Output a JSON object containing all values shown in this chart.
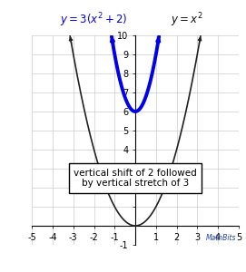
{
  "xlim": [
    -5,
    5
  ],
  "ylim": [
    -1,
    10
  ],
  "grid_color": "#cccccc",
  "black_curve_color": "#222222",
  "blue_curve_color": "#0000ee",
  "blue_curve_lw": 2.8,
  "black_curve_lw": 1.2,
  "annotation_text": "vertical shift of 2 followed\nby vertical stretch of 3",
  "mathbits_text": "MathBits",
  "box_color": "#ffffff",
  "box_edge_color": "#000000",
  "title_color_blue": "#0000ee",
  "title_color_black": "#111111",
  "figsize": [
    2.71,
    3.0
  ],
  "dpi": 100,
  "ytick_show": [
    -1,
    4,
    5,
    6,
    7,
    8,
    9,
    10
  ],
  "xtick_hide": [
    0
  ]
}
